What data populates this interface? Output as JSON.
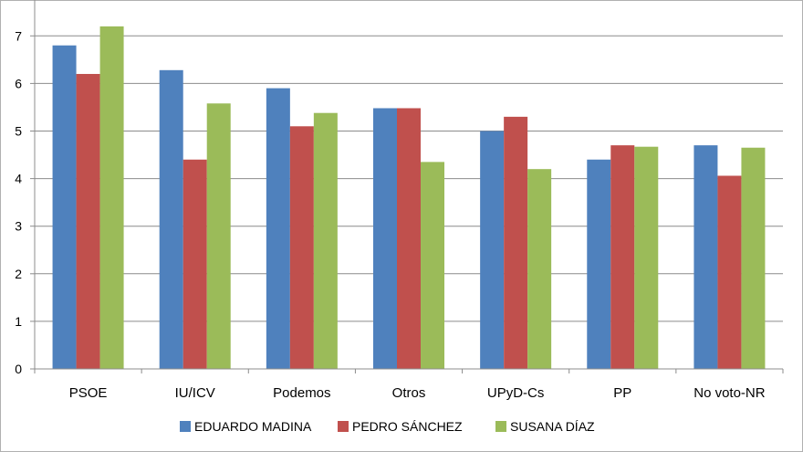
{
  "chart_data": {
    "type": "bar",
    "categories": [
      "PSOE",
      "IU/ICV",
      "Podemos",
      "Otros",
      "UPyD-Cs",
      "PP",
      "No voto-NR"
    ],
    "series": [
      {
        "name": "EDUARDO MADINA",
        "color": "#4F81BD",
        "values": [
          6.8,
          6.28,
          5.9,
          5.48,
          5.0,
          4.4,
          4.7
        ]
      },
      {
        "name": "PEDRO SÁNCHEZ",
        "color": "#C0504D",
        "values": [
          6.2,
          4.4,
          5.1,
          5.48,
          5.3,
          4.7,
          4.06
        ]
      },
      {
        "name": "SUSANA DÍAZ",
        "color": "#9BBB59",
        "values": [
          7.2,
          5.58,
          5.38,
          4.35,
          4.2,
          4.67,
          4.65
        ]
      }
    ],
    "ylim": [
      0,
      7.5
    ],
    "yticks": [
      "0",
      "1",
      "2",
      "3",
      "4",
      "5",
      "6",
      "7"
    ],
    "grid": true,
    "legend_position": "bottom",
    "title": "",
    "xlabel": "",
    "ylabel": ""
  }
}
